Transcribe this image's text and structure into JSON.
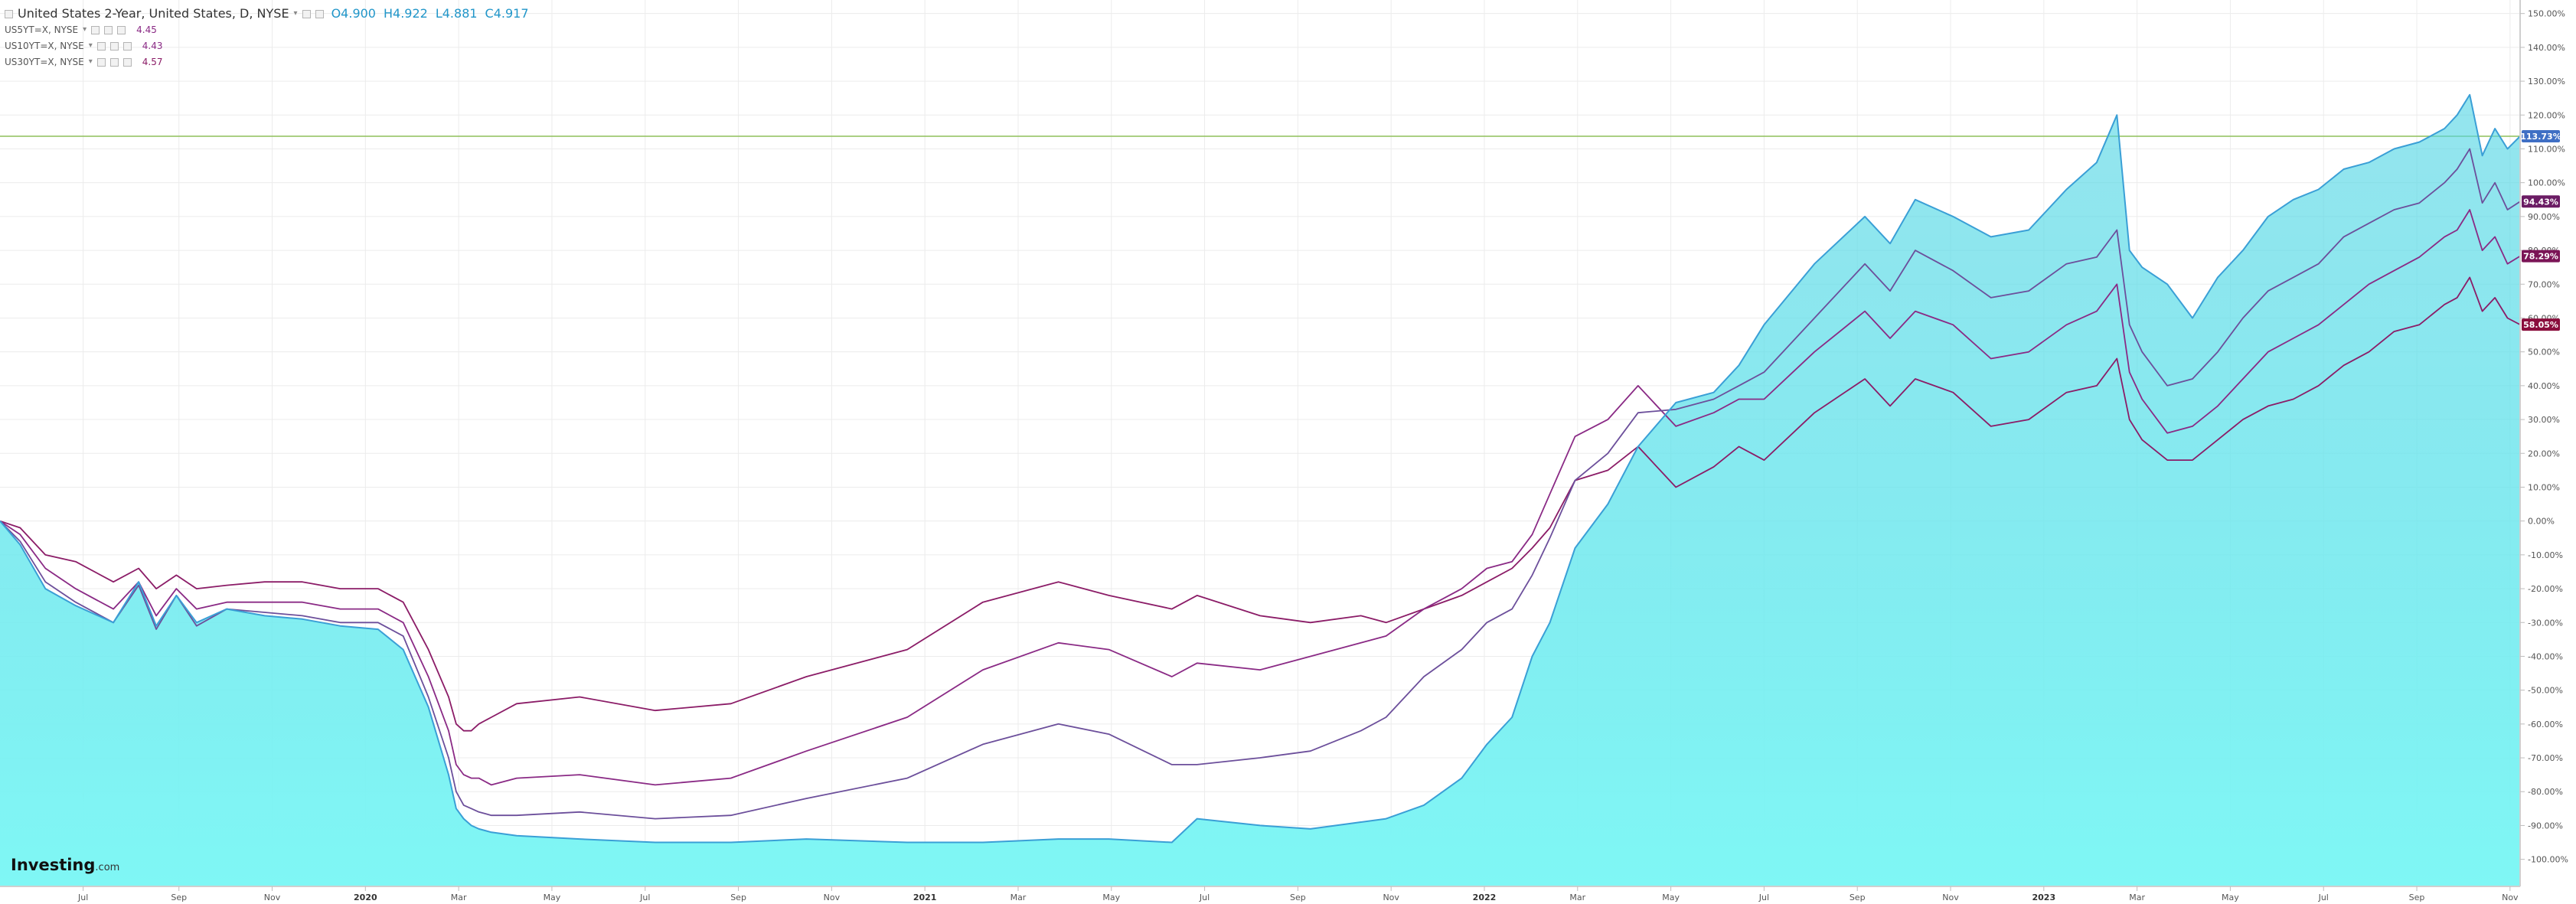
{
  "legend": {
    "main_title": "United States 2-Year, United States, D, NYSE",
    "ohlc": {
      "open": "O4.900",
      "high": "H4.922",
      "low": "L4.881",
      "close": "C4.917"
    },
    "series": [
      {
        "label": "US5YT=X, NYSE",
        "value": "4.45"
      },
      {
        "label": "US10YT=X, NYSE",
        "value": "4.43"
      },
      {
        "label": "US30YT=X, NYSE",
        "value": "4.57"
      }
    ]
  },
  "brand": {
    "name": "Investing",
    "suffix": ".com"
  },
  "colors": {
    "area_fill_top": "#4fd3e3",
    "area_fill_bottom": "#7ff7f5",
    "area_line": "#3a9fd6",
    "us5y": "#6c4f9b",
    "us10y": "#8a2a85",
    "us30y": "#8b1c67",
    "badge_2y": "#3f6fc4",
    "badge_5y": "#6b1c64",
    "badge_10y": "#7b1456",
    "badge_30y": "#8a0e3d",
    "grid": "#ececec",
    "hline": "#8fbf5a"
  },
  "chart_data": {
    "type": "area",
    "x_tick_labels": [
      "Jul",
      "Sep",
      "Nov",
      "2020",
      "Mar",
      "May",
      "Jul",
      "Sep",
      "Nov",
      "2021",
      "Mar",
      "May",
      "Jul",
      "Sep",
      "Nov",
      "2022",
      "Mar",
      "May",
      "Jul",
      "Sep",
      "Nov",
      "2023",
      "Mar",
      "May",
      "Jul",
      "Sep",
      "Nov"
    ],
    "y_tick_labels": [
      "150.00%",
      "140.00%",
      "130.00%",
      "120.00%",
      "110.00%",
      "100.00%",
      "90.00%",
      "80.00%",
      "70.00%",
      "60.00%",
      "50.00%",
      "40.00%",
      "30.00%",
      "20.00%",
      "10.00%",
      "0.00%",
      "-10.00%",
      "-20.00%",
      "-30.00%",
      "-40.00%",
      "-50.00%",
      "-60.00%",
      "-70.00%",
      "-80.00%",
      "-90.00%",
      "-100.00%"
    ],
    "y_ticks": [
      150,
      140,
      130,
      120,
      110,
      100,
      90,
      80,
      70,
      60,
      50,
      40,
      30,
      20,
      10,
      0,
      -10,
      -20,
      -30,
      -40,
      -50,
      -60,
      -70,
      -80,
      -90,
      -100
    ],
    "ylim": [
      -108,
      154
    ],
    "xlim": [
      0,
      1000
    ],
    "x_ticks": [
      33,
      71,
      108,
      145,
      182,
      219,
      256,
      293,
      330,
      367,
      404,
      441,
      478,
      515,
      552,
      589,
      626,
      663,
      700,
      737,
      774,
      811,
      848,
      885,
      922,
      959,
      996
    ],
    "last_value_labels": [
      {
        "series": "US2YT=X",
        "text": "113.73%",
        "value": 113.73
      },
      {
        "series": "US5YT=X",
        "text": "94.43%",
        "value": 94.43
      },
      {
        "series": "US10YT=X",
        "text": "78.29%",
        "value": 78.29
      },
      {
        "series": "US30YT=X",
        "text": "58.05%",
        "value": 58.05
      }
    ],
    "horizontal_line_value": 113.73,
    "series": [
      {
        "name": "United States 2-Year",
        "style": "area",
        "x": [
          0,
          8,
          18,
          30,
          45,
          55,
          62,
          70,
          78,
          90,
          105,
          120,
          135,
          150,
          160,
          170,
          178,
          181,
          184,
          187,
          190,
          195,
          205,
          230,
          260,
          290,
          320,
          360,
          390,
          420,
          440,
          465,
          475,
          500,
          520,
          540,
          550,
          565,
          580,
          590,
          600,
          608,
          615,
          625,
          638,
          650,
          665,
          680,
          690,
          700,
          720,
          740,
          750,
          760,
          775,
          790,
          805,
          820,
          832,
          840,
          845,
          850,
          860,
          870,
          880,
          890,
          900,
          910,
          920,
          930,
          940,
          950,
          960,
          970,
          975,
          980,
          985,
          990,
          995,
          1000
        ],
        "y": [
          0,
          -7,
          -20,
          -25,
          -30,
          -18,
          -31,
          -22,
          -30,
          -26,
          -28,
          -29,
          -31,
          -32,
          -38,
          -55,
          -75,
          -85,
          -88,
          -90,
          -91,
          -92,
          -93,
          -94,
          -95,
          -95,
          -94,
          -95,
          -95,
          -94,
          -94,
          -95,
          -88,
          -90,
          -91,
          -89,
          -88,
          -84,
          -76,
          -66,
          -58,
          -40,
          -30,
          -8,
          5,
          22,
          35,
          38,
          46,
          58,
          76,
          90,
          82,
          95,
          90,
          84,
          86,
          98,
          106,
          120,
          80,
          75,
          70,
          60,
          72,
          80,
          90,
          95,
          98,
          104,
          106,
          110,
          112,
          116,
          120,
          126,
          108,
          116,
          110,
          113.73
        ]
      },
      {
        "name": "US5YT=X",
        "style": "line",
        "x": [
          0,
          8,
          18,
          30,
          45,
          55,
          62,
          70,
          78,
          90,
          105,
          120,
          135,
          150,
          160,
          170,
          178,
          181,
          184,
          187,
          190,
          195,
          205,
          230,
          260,
          290,
          320,
          360,
          390,
          420,
          440,
          465,
          475,
          500,
          520,
          540,
          550,
          565,
          580,
          590,
          600,
          608,
          615,
          625,
          638,
          650,
          665,
          680,
          690,
          700,
          720,
          740,
          750,
          760,
          775,
          790,
          805,
          820,
          832,
          840,
          845,
          850,
          860,
          870,
          880,
          890,
          900,
          910,
          920,
          930,
          940,
          950,
          960,
          970,
          975,
          980,
          985,
          990,
          995,
          1000
        ],
        "y": [
          0,
          -6,
          -18,
          -24,
          -30,
          -19,
          -32,
          -22,
          -31,
          -26,
          -27,
          -28,
          -30,
          -30,
          -34,
          -52,
          -70,
          -80,
          -84,
          -85,
          -86,
          -87,
          -87,
          -86,
          -88,
          -87,
          -82,
          -76,
          -66,
          -60,
          -63,
          -72,
          -72,
          -70,
          -68,
          -62,
          -58,
          -46,
          -38,
          -30,
          -26,
          -16,
          -5,
          12,
          20,
          32,
          33,
          36,
          40,
          44,
          60,
          76,
          68,
          80,
          74,
          66,
          68,
          76,
          78,
          86,
          58,
          50,
          40,
          42,
          50,
          60,
          68,
          72,
          76,
          84,
          88,
          92,
          94,
          100,
          104,
          110,
          94,
          100,
          92,
          94.43
        ]
      },
      {
        "name": "US10YT=X",
        "style": "line",
        "x": [
          0,
          8,
          18,
          30,
          45,
          55,
          62,
          70,
          78,
          90,
          105,
          120,
          135,
          150,
          160,
          170,
          178,
          181,
          184,
          187,
          190,
          195,
          205,
          230,
          260,
          290,
          320,
          360,
          390,
          420,
          440,
          465,
          475,
          500,
          520,
          540,
          550,
          565,
          580,
          590,
          600,
          608,
          615,
          625,
          638,
          650,
          665,
          680,
          690,
          700,
          720,
          740,
          750,
          760,
          775,
          790,
          805,
          820,
          832,
          840,
          845,
          850,
          860,
          870,
          880,
          890,
          900,
          910,
          920,
          930,
          940,
          950,
          960,
          970,
          975,
          980,
          985,
          990,
          995,
          1000
        ],
        "y": [
          0,
          -4,
          -14,
          -20,
          -26,
          -18,
          -28,
          -20,
          -26,
          -24,
          -24,
          -24,
          -26,
          -26,
          -30,
          -46,
          -62,
          -72,
          -75,
          -76,
          -76,
          -78,
          -76,
          -75,
          -78,
          -76,
          -68,
          -58,
          -44,
          -36,
          -38,
          -46,
          -42,
          -44,
          -40,
          -36,
          -34,
          -26,
          -20,
          -14,
          -12,
          -4,
          8,
          25,
          30,
          40,
          28,
          32,
          36,
          36,
          50,
          62,
          54,
          62,
          58,
          48,
          50,
          58,
          62,
          70,
          44,
          36,
          26,
          28,
          34,
          42,
          50,
          54,
          58,
          64,
          70,
          74,
          78,
          84,
          86,
          92,
          80,
          84,
          76,
          78.29
        ]
      },
      {
        "name": "US30YT=X",
        "style": "line",
        "x": [
          0,
          8,
          18,
          30,
          45,
          55,
          62,
          70,
          78,
          90,
          105,
          120,
          135,
          150,
          160,
          170,
          178,
          181,
          184,
          187,
          190,
          195,
          205,
          230,
          260,
          290,
          320,
          360,
          390,
          420,
          440,
          465,
          475,
          500,
          520,
          540,
          550,
          565,
          580,
          590,
          600,
          608,
          615,
          625,
          638,
          650,
          665,
          680,
          690,
          700,
          720,
          740,
          750,
          760,
          775,
          790,
          805,
          820,
          832,
          840,
          845,
          850,
          860,
          870,
          880,
          890,
          900,
          910,
          920,
          930,
          940,
          950,
          960,
          970,
          975,
          980,
          985,
          990,
          995,
          1000
        ],
        "y": [
          0,
          -2,
          -10,
          -12,
          -18,
          -14,
          -20,
          -16,
          -20,
          -19,
          -18,
          -18,
          -20,
          -20,
          -24,
          -38,
          -52,
          -60,
          -62,
          -62,
          -60,
          -58,
          -54,
          -52,
          -56,
          -54,
          -46,
          -38,
          -24,
          -18,
          -22,
          -26,
          -22,
          -28,
          -30,
          -28,
          -30,
          -26,
          -22,
          -18,
          -14,
          -8,
          -2,
          12,
          15,
          22,
          10,
          16,
          22,
          18,
          32,
          42,
          34,
          42,
          38,
          28,
          30,
          38,
          40,
          48,
          30,
          24,
          18,
          18,
          24,
          30,
          34,
          36,
          40,
          46,
          50,
          56,
          58,
          64,
          66,
          72,
          62,
          66,
          60,
          58.05
        ]
      }
    ]
  }
}
